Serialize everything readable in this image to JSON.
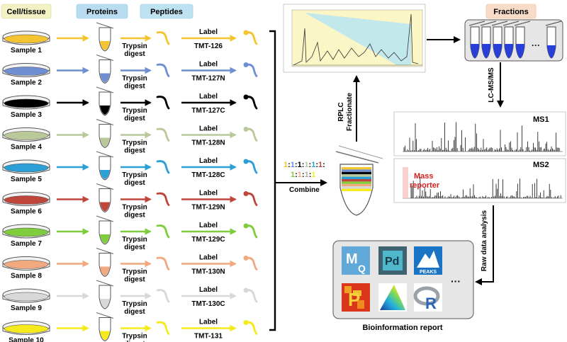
{
  "headers": {
    "cell_tissue": "Cell/tissue",
    "proteins": "Proteins",
    "peptides": "Peptides",
    "fractions": "Fractions"
  },
  "header_colors": {
    "cell_tissue": "#f4f2c4",
    "proteins": "#b9dcf0",
    "peptides": "#bfe2f2",
    "fractions": "#f9dcc8"
  },
  "samples": [
    {
      "name": "Sample 1",
      "color": "#f4c530",
      "label_top": "Label",
      "label_tag": "TMT-126"
    },
    {
      "name": "Sample 2",
      "color": "#6f8fd2",
      "label_top": "Label",
      "label_tag": "TMT-127N"
    },
    {
      "name": "Sample 3",
      "color": "#000000",
      "label_top": "Label",
      "label_tag": "TMT-127C"
    },
    {
      "name": "Sample 4",
      "color": "#b9c99a",
      "label_top": "Label",
      "label_tag": "TMT-128N"
    },
    {
      "name": "Sample 5",
      "color": "#2b9fd6",
      "label_top": "Label",
      "label_tag": "TMT-128C"
    },
    {
      "name": "Sample 6",
      "color": "#c0463b",
      "label_top": "Label",
      "label_tag": "TMT-129N"
    },
    {
      "name": "Sample 7",
      "color": "#7fcc3d",
      "label_top": "Label",
      "label_tag": "TMT-129C"
    },
    {
      "name": "Sample 8",
      "color": "#f2a97f",
      "label_top": "Label",
      "label_tag": "TMT-130N"
    },
    {
      "name": "Sample 9",
      "color": "#d8d8d8",
      "label_top": "Label",
      "label_tag": "TMT-130C"
    },
    {
      "name": "Sample 10",
      "color": "#f5ea1c",
      "label_top": "Label",
      "label_tag": "TMT-131"
    }
  ],
  "digest_line1": "Trypsin",
  "digest_line2": "digest",
  "ratio_line1": [
    "1",
    ":",
    "1",
    ":",
    "1",
    ":",
    "1",
    ":",
    "1",
    ":",
    "1",
    ":"
  ],
  "ratio_line2": [
    "1",
    ":",
    "1",
    ":",
    "1",
    ":",
    "1"
  ],
  "combine": "Combine",
  "rplc": "RPLC",
  "fractionate": "Fractionate",
  "lcmsms": "LC-MS/MS",
  "ms1": "MS1",
  "ms2": "MS2",
  "mass": "Mass",
  "reporter": "reporter",
  "raw_data": "Raw data analysis",
  "ellipsis_fractions": "···",
  "ellipsis_tools": "···",
  "tools": {
    "mq_m": "M",
    "mq_q": "Q",
    "pd": "Pd",
    "peaks": "PEAKS",
    "p": "P",
    "r": "R"
  },
  "bioinfo": "Bioinformation report"
}
